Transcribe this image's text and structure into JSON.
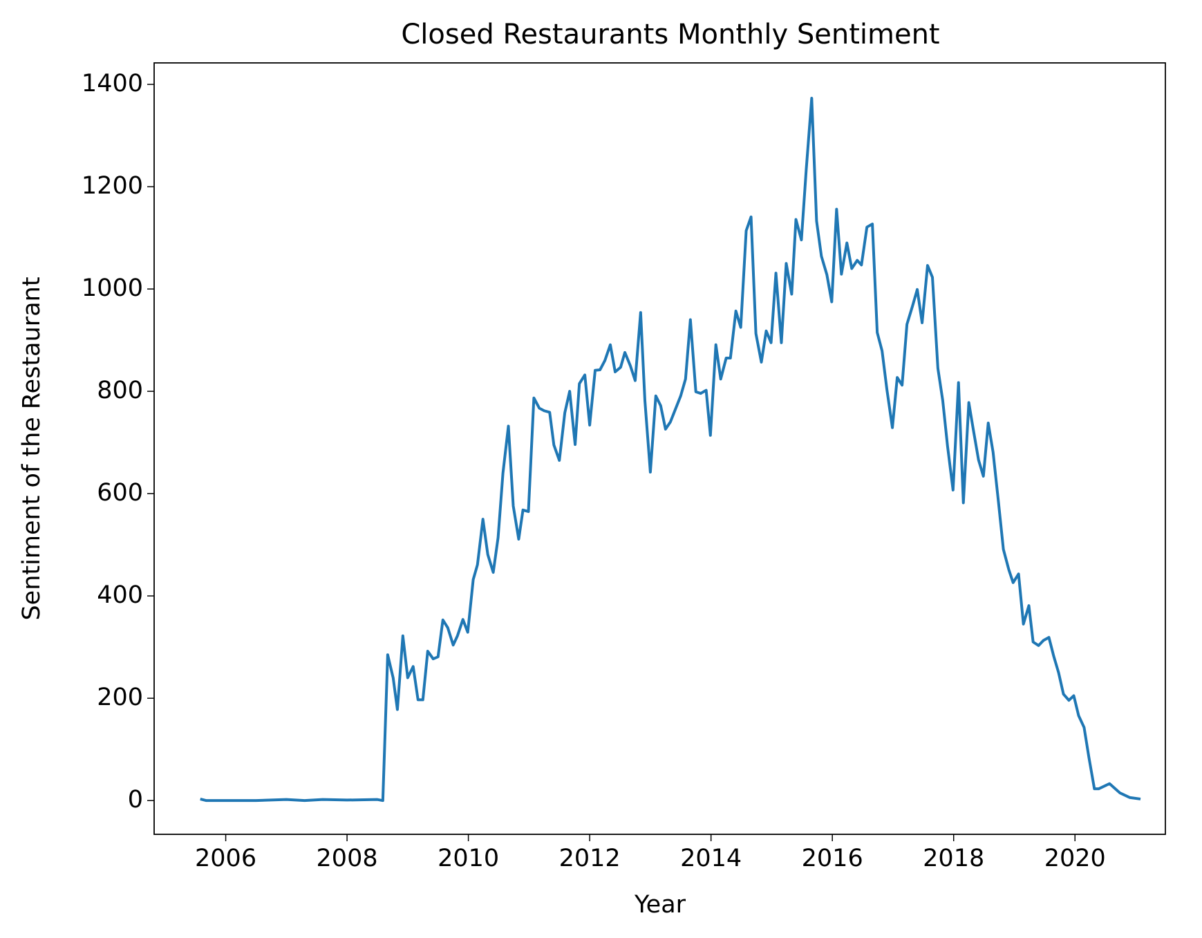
{
  "chart_data": {
    "type": "line",
    "title": "Closed Restaurants Monthly Sentiment",
    "x_label": "Year",
    "y_label": "Sentiment of the Restaurant",
    "xlim": [
      2004.82,
      2021.49
    ],
    "ylim": [
      -66,
      1442
    ],
    "xticks": [
      2006,
      2008,
      2010,
      2012,
      2014,
      2016,
      2018,
      2020
    ],
    "yticks": [
      0,
      200,
      400,
      600,
      800,
      1000,
      1200,
      1400
    ],
    "grid": false,
    "series": [
      {
        "name": "Sentiment",
        "color": "#1f77b4",
        "x": [
          2005.58,
          2005.68,
          2006.5,
          2007.0,
          2007.3,
          2007.6,
          2008.0,
          2008.5,
          2008.59,
          2008.67,
          2008.76,
          2008.83,
          2008.92,
          2009.0,
          2009.09,
          2009.17,
          2009.25,
          2009.33,
          2009.42,
          2009.5,
          2009.58,
          2009.66,
          2009.75,
          2009.82,
          2009.91,
          2009.99,
          2010.08,
          2010.15,
          2010.24,
          2010.32,
          2010.41,
          2010.49,
          2010.57,
          2010.66,
          2010.74,
          2010.83,
          2010.9,
          2010.99,
          2011.08,
          2011.17,
          2011.25,
          2011.34,
          2011.41,
          2011.5,
          2011.59,
          2011.67,
          2011.76,
          2011.83,
          2011.92,
          2012.0,
          2012.09,
          2012.17,
          2012.25,
          2012.34,
          2012.42,
          2012.51,
          2012.58,
          2012.67,
          2012.75,
          2012.84,
          2012.91,
          2013.0,
          2013.09,
          2013.17,
          2013.25,
          2013.33,
          2013.42,
          2013.5,
          2013.58,
          2013.66,
          2013.75,
          2013.83,
          2013.92,
          2013.99,
          2014.08,
          2014.16,
          2014.25,
          2014.32,
          2014.41,
          2014.49,
          2014.58,
          2014.66,
          2014.74,
          2014.83,
          2014.91,
          2014.99,
          2015.07,
          2015.16,
          2015.24,
          2015.33,
          2015.4,
          2015.49,
          2015.57,
          2015.66,
          2015.74,
          2015.82,
          2015.91,
          2015.99,
          2016.07,
          2016.15,
          2016.24,
          2016.32,
          2016.41,
          2016.48,
          2016.57,
          2016.66,
          2016.74,
          2016.82,
          2016.9,
          2016.99,
          2017.07,
          2017.15,
          2017.23,
          2017.32,
          2017.4,
          2017.48,
          2017.57,
          2017.65,
          2017.74,
          2017.82,
          2017.9,
          2017.99,
          2018.08,
          2018.16,
          2018.25,
          2018.32,
          2018.41,
          2018.49,
          2018.57,
          2018.65,
          2018.74,
          2018.82,
          2018.91,
          2018.98,
          2019.07,
          2019.15,
          2019.24,
          2019.31,
          2019.4,
          2019.48,
          2019.57,
          2019.65,
          2019.73,
          2019.81,
          2019.9,
          2019.98,
          2020.06,
          2020.15,
          2020.23,
          2020.32,
          2020.39,
          2020.57,
          2020.74,
          2020.9,
          2021.08
        ],
        "values": [
          3,
          0,
          0,
          2,
          0,
          2,
          1,
          2,
          0,
          285,
          240,
          178,
          322,
          240,
          262,
          197,
          197,
          292,
          277,
          281,
          353,
          338,
          304,
          322,
          354,
          329,
          432,
          461,
          550,
          481,
          446,
          514,
          640,
          732,
          576,
          511,
          568,
          565,
          787,
          767,
          762,
          759,
          695,
          665,
          758,
          800,
          696,
          815,
          832,
          734,
          841,
          842,
          860,
          891,
          838,
          847,
          876,
          850,
          821,
          954,
          782,
          642,
          791,
          772,
          726,
          740,
          767,
          791,
          824,
          940,
          799,
          796,
          802,
          714,
          891,
          824,
          865,
          865,
          957,
          925,
          1114,
          1141,
          913,
          857,
          918,
          895,
          1031,
          895,
          1050,
          990,
          1136,
          1096,
          1234,
          1373,
          1133,
          1064,
          1028,
          975,
          1156,
          1029,
          1090,
          1040,
          1056,
          1047,
          1121,
          1127,
          915,
          879,
          803,
          729,
          827,
          812,
          931,
          966,
          999,
          934,
          1046,
          1023,
          845,
          782,
          692,
          607,
          817,
          582,
          778,
          728,
          666,
          634,
          738,
          681,
          582,
          491,
          451,
          426,
          443,
          345,
          381,
          310,
          303,
          313,
          319,
          282,
          250,
          208,
          196,
          205,
          166,
          143,
          84,
          23,
          23,
          33,
          15,
          6,
          3
        ]
      }
    ]
  }
}
